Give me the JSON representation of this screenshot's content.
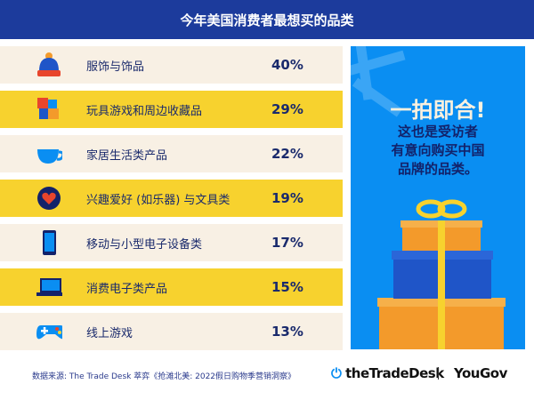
{
  "title": "今年美国消费者最想买的品类",
  "colors": {
    "header": "#1c3b9c",
    "beige": "#f8f0e4",
    "yellow": "#f7d22e",
    "panel": "#0a8ef2"
  },
  "rows": [
    {
      "label": "服饰与饰品",
      "pct": "40%",
      "icon": "winter-hat-icon"
    },
    {
      "label": "玩具游戏和周边收藏品",
      "pct": "29%",
      "icon": "puzzle-icon"
    },
    {
      "label": "家居生活类产品",
      "pct": "22%",
      "icon": "teacup-icon"
    },
    {
      "label": "兴趣爱好 (如乐器) 与文具类",
      "pct": "19%",
      "icon": "heart-icon"
    },
    {
      "label": "移动与小型电子设备类",
      "pct": "17%",
      "icon": "smartphone-icon"
    },
    {
      "label": "消费电子类产品",
      "pct": "15%",
      "icon": "laptop-icon"
    },
    {
      "label": "线上游戏",
      "pct": "13%",
      "icon": "gamepad-icon"
    }
  ],
  "panel": {
    "headline": "一拍即合!",
    "lines": [
      "这也是受访者",
      "有意向购买中国",
      "品牌的品类。"
    ]
  },
  "footer": {
    "source": "数据来源: The Trade Desk 萃弈《抢滩北美: 2022假日购物季营销洞察》",
    "logo1": "theTradeDesk",
    "logo2": "YouGov"
  }
}
